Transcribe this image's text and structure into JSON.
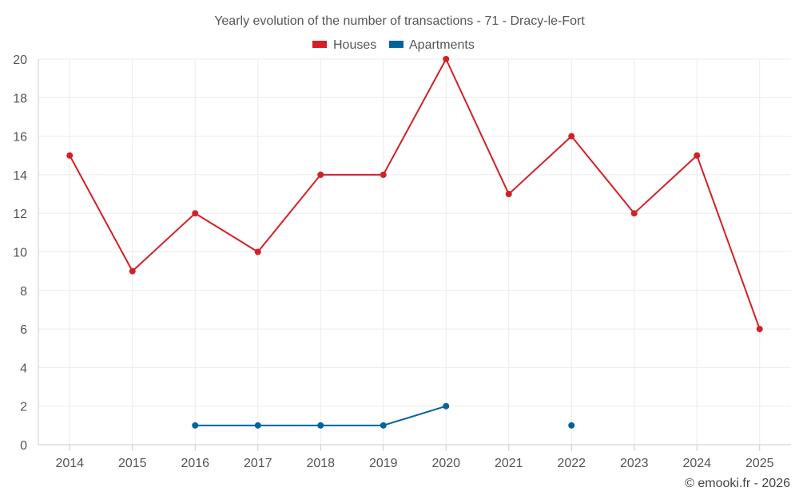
{
  "chart_data": {
    "type": "line",
    "title": "Yearly evolution of the number of transactions - 71 - Dracy-le-Fort",
    "xlabel": "",
    "ylabel": "",
    "categories": [
      "2014",
      "2015",
      "2016",
      "2017",
      "2018",
      "2019",
      "2020",
      "2021",
      "2022",
      "2023",
      "2024",
      "2025"
    ],
    "ylim": [
      0,
      20
    ],
    "yticks": [
      "0",
      "2",
      "4",
      "6",
      "8",
      "10",
      "12",
      "14",
      "16",
      "18",
      "20"
    ],
    "grid": true,
    "legend_position": "top-center",
    "series": [
      {
        "name": "Houses",
        "color": "#d32027",
        "values": [
          15,
          9,
          12,
          10,
          14,
          14,
          20,
          13,
          16,
          12,
          15,
          6
        ]
      },
      {
        "name": "Apartments",
        "color": "#03649a",
        "values": [
          null,
          null,
          1,
          1,
          1,
          1,
          2,
          null,
          1,
          null,
          null,
          null
        ]
      }
    ]
  },
  "credit": "© emooki.fr - 2026"
}
